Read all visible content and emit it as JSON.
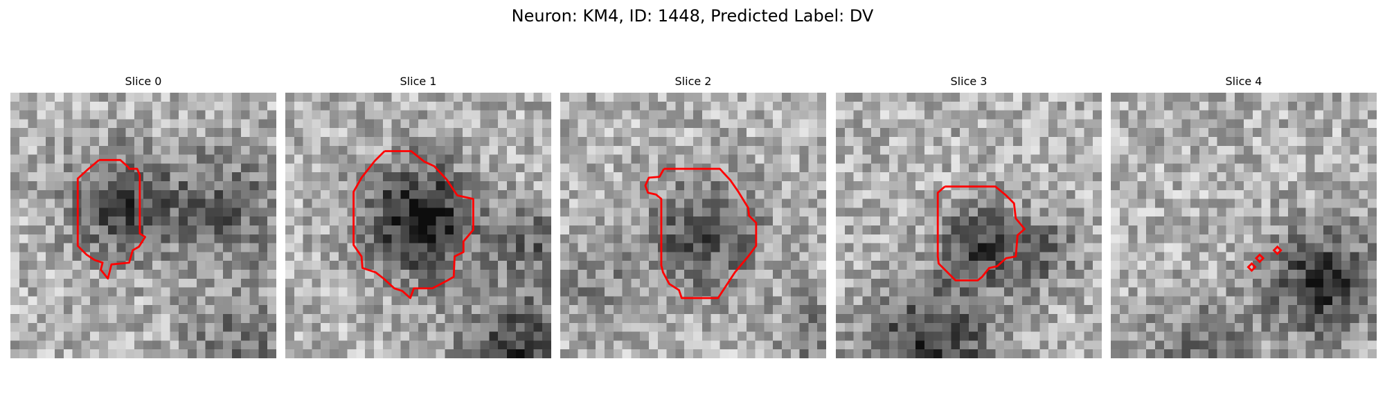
{
  "figure": {
    "title": "Neuron: KM4, ID: 1448, Predicted Label: DV"
  },
  "panels": [
    {
      "title": "Slice 0",
      "contour_color": "#ff0000",
      "seed": 11,
      "dark_spots": [
        [
          0.4,
          0.4,
          0.14,
          0.42
        ],
        [
          0.8,
          0.42,
          0.16,
          0.3
        ],
        [
          0.85,
          0.95,
          0.15,
          0.25
        ]
      ]
    },
    {
      "title": "Slice 1",
      "contour_color": "#ff0000",
      "seed": 23,
      "dark_spots": [
        [
          0.49,
          0.46,
          0.15,
          0.6
        ],
        [
          0.92,
          0.55,
          0.1,
          0.28
        ],
        [
          0.87,
          0.97,
          0.16,
          0.45
        ]
      ]
    },
    {
      "title": "Slice 2",
      "contour_color": "#ff0000",
      "seed": 37,
      "dark_spots": [
        [
          0.52,
          0.52,
          0.15,
          0.38
        ],
        [
          0.1,
          0.7,
          0.12,
          0.18
        ],
        [
          0.95,
          0.88,
          0.1,
          0.25
        ]
      ]
    },
    {
      "title": "Slice 3",
      "contour_color": "#ff0000",
      "seed": 41,
      "dark_spots": [
        [
          0.52,
          0.56,
          0.11,
          0.4
        ],
        [
          0.78,
          0.58,
          0.1,
          0.25
        ],
        [
          0.33,
          0.98,
          0.18,
          0.5
        ]
      ]
    },
    {
      "title": "Slice 4",
      "contour_color": "#ff0000",
      "seed": 53,
      "dark_spots": [
        [
          0.78,
          0.7,
          0.15,
          0.48
        ],
        [
          0.3,
          0.98,
          0.14,
          0.3
        ]
      ]
    }
  ]
}
